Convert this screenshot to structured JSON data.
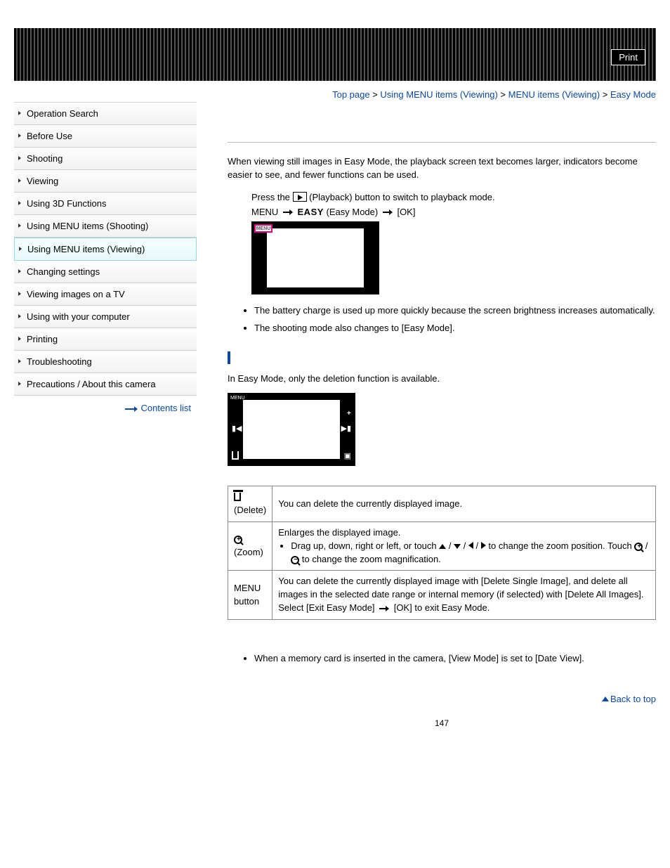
{
  "header": {
    "print_label": "Print"
  },
  "breadcrumb": {
    "items": [
      "Top page",
      "Using MENU items (Viewing)",
      "MENU items (Viewing)",
      "Easy Mode"
    ],
    "sep": " > "
  },
  "sidebar": {
    "items": [
      {
        "label": "Operation Search",
        "active": false
      },
      {
        "label": "Before Use",
        "active": false
      },
      {
        "label": "Shooting",
        "active": false
      },
      {
        "label": "Viewing",
        "active": false
      },
      {
        "label": "Using 3D Functions",
        "active": false
      },
      {
        "label": "Using MENU items (Shooting)",
        "active": false
      },
      {
        "label": "Using MENU items (Viewing)",
        "active": true
      },
      {
        "label": "Changing settings",
        "active": false
      },
      {
        "label": "Viewing images on a TV",
        "active": false
      },
      {
        "label": "Using with your computer",
        "active": false
      },
      {
        "label": "Printing",
        "active": false
      },
      {
        "label": "Troubleshooting",
        "active": false
      },
      {
        "label": "Precautions / About this camera",
        "active": false
      }
    ],
    "contents_link": "Contents list"
  },
  "content": {
    "intro": "When viewing still images in Easy Mode, the playback screen text becomes larger, indicators become easier to see, and fewer functions can be used.",
    "step1_a": "Press the ",
    "step1_b": " (Playback) button to switch to playback mode.",
    "step2_a": "MENU ",
    "step2_easy": "EASY",
    "step2_b": " (Easy Mode) ",
    "step2_c": " [OK]",
    "illus1_menu": "MENU",
    "bullets1": [
      "The battery charge is used up more quickly because the screen brightness increases automatically.",
      "The shooting mode also changes to [Easy Mode]."
    ],
    "section2_intro": "In Easy Mode, only the deletion function is available.",
    "illus2_menu": "MENU",
    "table": {
      "rows": [
        {
          "head_icon": "trash",
          "head_label": "(Delete)",
          "desc": "You can delete the currently displayed image."
        },
        {
          "head_icon": "zoom",
          "head_label": "(Zoom)",
          "desc_line1": "Enlarges the displayed image.",
          "desc_bullet_a": "Drag up, down, right or left, or touch ",
          "desc_bullet_b": " to change the zoom position. Touch ",
          "desc_bullet_c": " to change the zoom magnification."
        },
        {
          "head_label_l1": "MENU",
          "head_label_l2": "button",
          "desc_l1": "You can delete the currently displayed image with [Delete Single Image], and delete all images in the selected date range or internal memory (if selected) with [Delete All Images].",
          "desc_l2_a": "Select [Exit Easy Mode] ",
          "desc_l2_b": " [OK] to exit Easy Mode."
        }
      ]
    },
    "bullets2": [
      "When a memory card is inserted in the camera, [View Mode] is set to [Date View]."
    ],
    "back_top": "Back to top",
    "page_num": "147"
  }
}
